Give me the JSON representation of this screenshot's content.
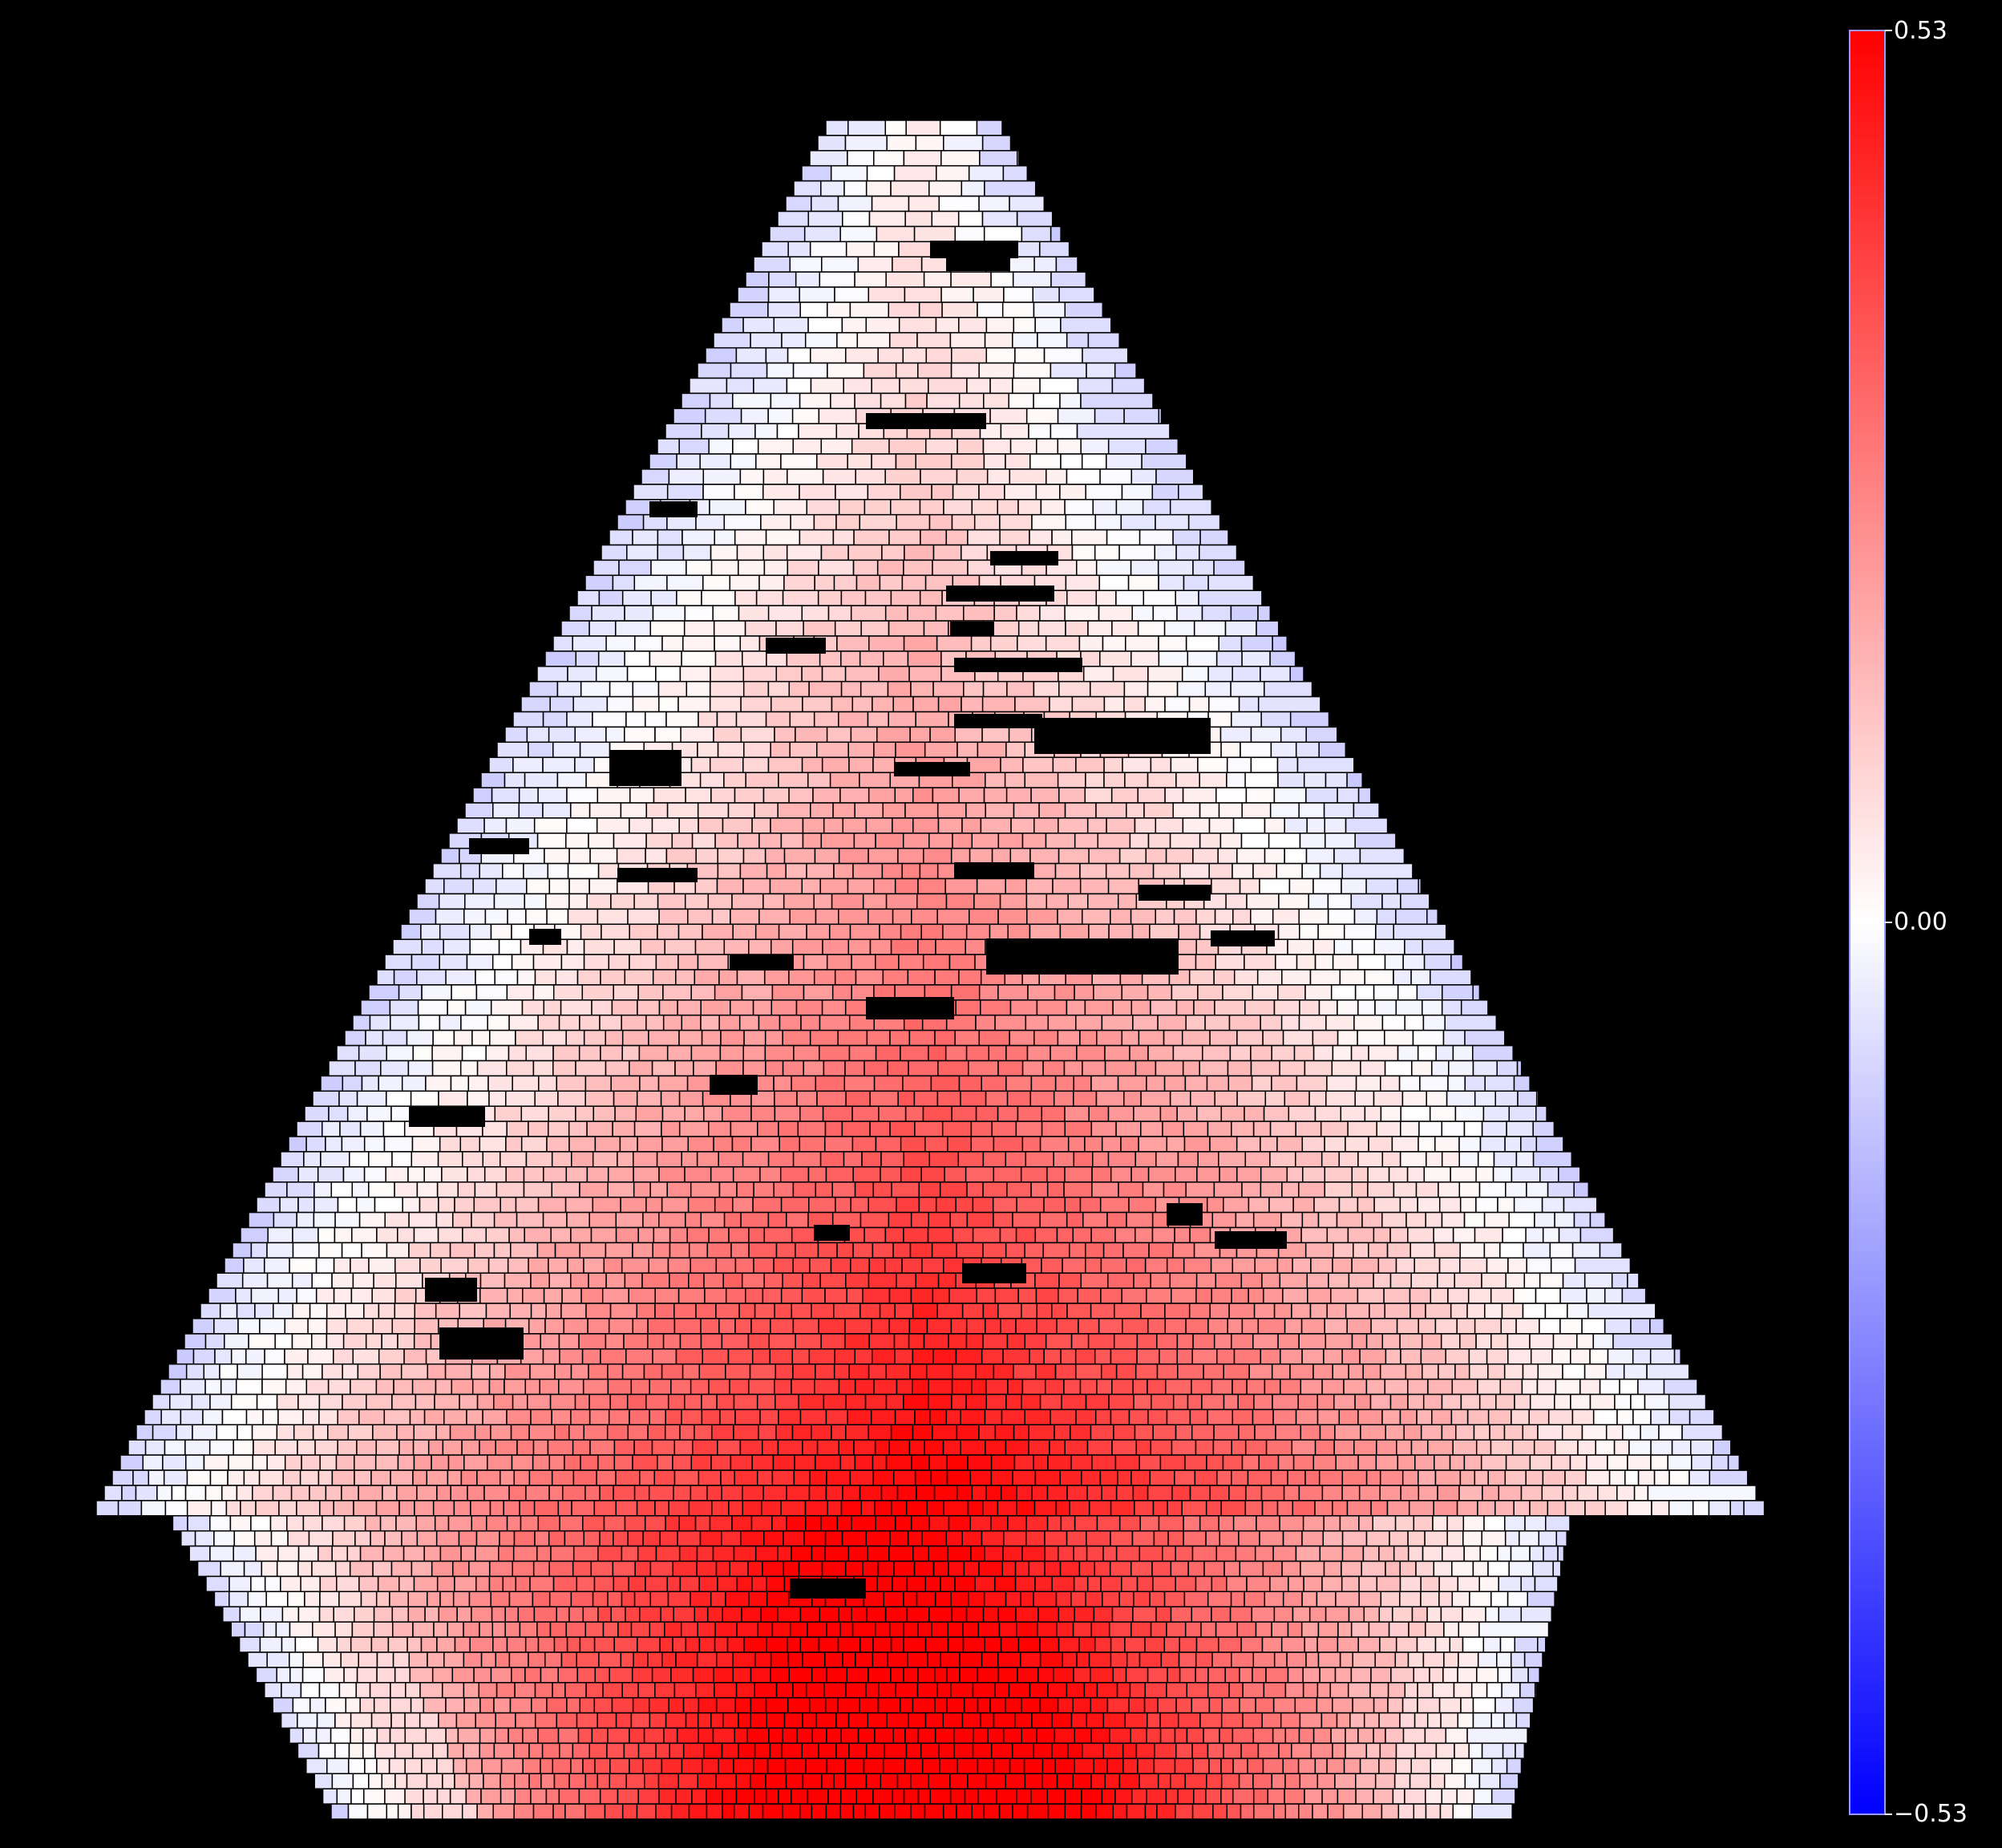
{
  "colorbar": {
    "max_label": "0.53",
    "mid_label": "0.00",
    "min_label": "−0.53",
    "max": 0.53,
    "min": -0.53,
    "colors": {
      "high": "#ff0000",
      "mid": "#ffffff",
      "low": "#0000ff"
    }
  },
  "figure": {
    "background": "#000000",
    "cell_outline": "#000000"
  }
}
